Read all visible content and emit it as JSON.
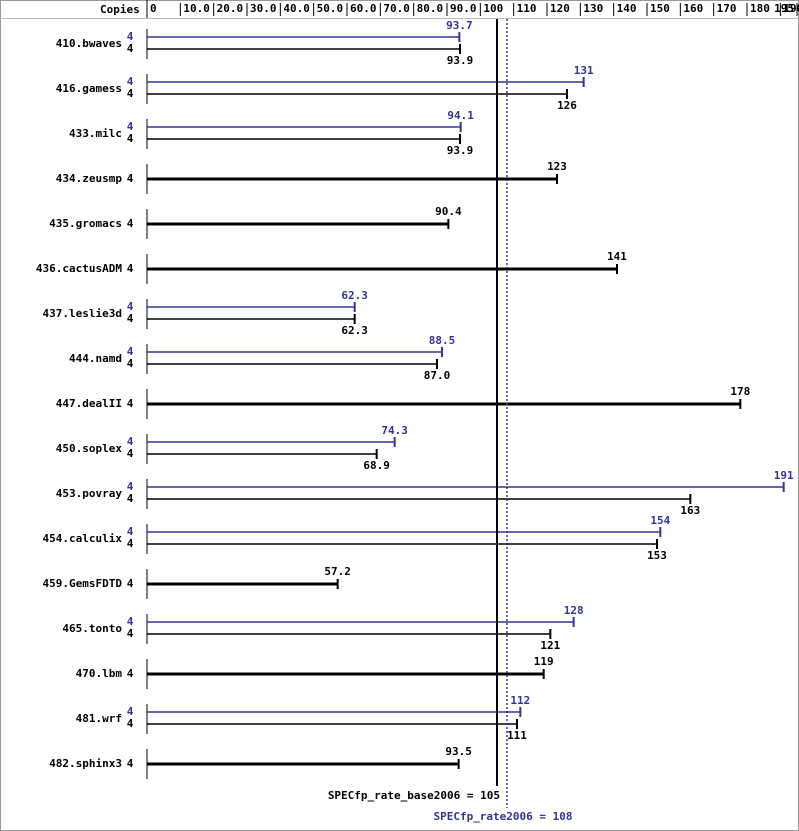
{
  "chart_data": {
    "type": "bar",
    "copies_label": "Copies",
    "categories": [
      "410.bwaves",
      "416.gamess",
      "433.milc",
      "434.zeusmp",
      "435.gromacs",
      "436.cactusADM",
      "437.leslie3d",
      "444.namd",
      "447.dealII",
      "450.soplex",
      "453.povray",
      "454.calculix",
      "459.GemsFDTD",
      "465.tonto",
      "470.lbm",
      "481.wrf",
      "482.sphinx3"
    ],
    "series": [
      {
        "color": "#000000",
        "values": [
          93.9,
          126,
          93.9,
          123,
          90.4,
          141,
          62.3,
          87.0,
          178,
          68.9,
          163,
          153,
          57.2,
          121,
          119,
          111,
          93.5
        ],
        "value_labels": [
          "93.9",
          "126",
          "93.9",
          "123",
          "90.4",
          "141",
          "62.3",
          "87.0",
          "178",
          "68.9",
          "163",
          "153",
          "57.2",
          "121",
          "119",
          "111",
          "93.5"
        ],
        "copies": [
          4,
          4,
          4,
          4,
          4,
          4,
          4,
          4,
          4,
          4,
          4,
          4,
          4,
          4,
          4,
          4,
          4
        ]
      },
      {
        "color": "#333399",
        "values": [
          93.7,
          131,
          94.1,
          null,
          null,
          null,
          62.3,
          88.5,
          null,
          74.3,
          191,
          154,
          null,
          128,
          null,
          112,
          null
        ],
        "copies": [
          4,
          4,
          4,
          null,
          null,
          null,
          4,
          4,
          null,
          4,
          4,
          4,
          null,
          4,
          null,
          4,
          null
        ]
      }
    ],
    "xlim": [
      0,
      195
    ],
    "xticks": [
      0,
      {
        "value": 10,
        "label": "10.0"
      },
      {
        "value": 20,
        "label": "20.0"
      },
      {
        "value": 30,
        "label": "30.0"
      },
      {
        "value": 40,
        "label": "40.0"
      },
      {
        "value": 50,
        "label": "50.0"
      },
      {
        "value": 60,
        "label": "60.0"
      },
      {
        "value": 70,
        "label": "70.0"
      },
      {
        "value": 80,
        "label": "80.0"
      },
      {
        "value": 90,
        "label": "90.0"
      },
      100,
      110,
      120,
      130,
      140,
      150,
      160,
      170,
      180,
      190,
      195
    ],
    "reference_lines": [
      {
        "label": "SPECfp_rate_base2006 = 105",
        "value": 105,
        "color": "#000000",
        "dashed": false
      },
      {
        "label": "SPECfp_rate2006 = 108",
        "value": 108,
        "color": "#333399",
        "dashed": true
      }
    ]
  }
}
